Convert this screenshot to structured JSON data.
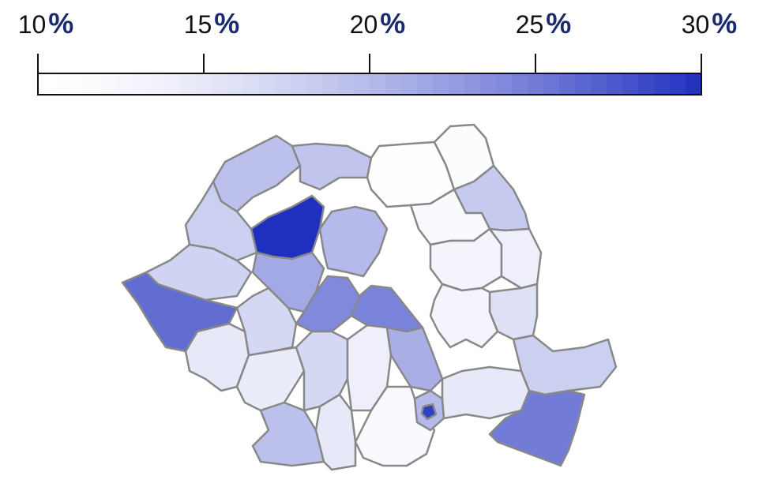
{
  "legend": {
    "min": 10,
    "max": 30,
    "ticks": [
      {
        "value": 10,
        "number": "10",
        "symbol": "%"
      },
      {
        "value": 15,
        "number": "15",
        "symbol": "%"
      },
      {
        "value": 20,
        "number": "20",
        "symbol": "%"
      },
      {
        "value": 25,
        "number": "25",
        "symbol": "%"
      },
      {
        "value": 30,
        "number": "30",
        "symbol": "%"
      }
    ],
    "color_low": "#ffffff",
    "color_high": "#1f2fbf",
    "symbol_color": "#1c2a6e"
  },
  "map": {
    "border_color": "#888888",
    "region_values": {
      "north-west": 19.5,
      "north-center": 19,
      "north-east-1": 10.5,
      "north-east-2": 11.5,
      "north-east-3": 18.5,
      "cluj": 30,
      "west-1": 18,
      "west-2": 17.5,
      "timis": 26,
      "center-1": 21.5,
      "center-2": 20,
      "center-3": 24,
      "brasov": 24.5,
      "east-1": 12,
      "east-2": 13,
      "east-3": 14,
      "east-4": 16,
      "south-west-1": 15,
      "south-west-2": 14.5,
      "south-west-3": 19.5,
      "south-1": 17,
      "south-2": 15,
      "south-3": 14,
      "south-4": 21,
      "south-5": 12,
      "bucharest": 29,
      "ilfov": 20,
      "south-east-1": 15,
      "south-east-2": 18,
      "constanta": 25,
      "north-east-4": 13,
      "center-4": 17
    }
  }
}
